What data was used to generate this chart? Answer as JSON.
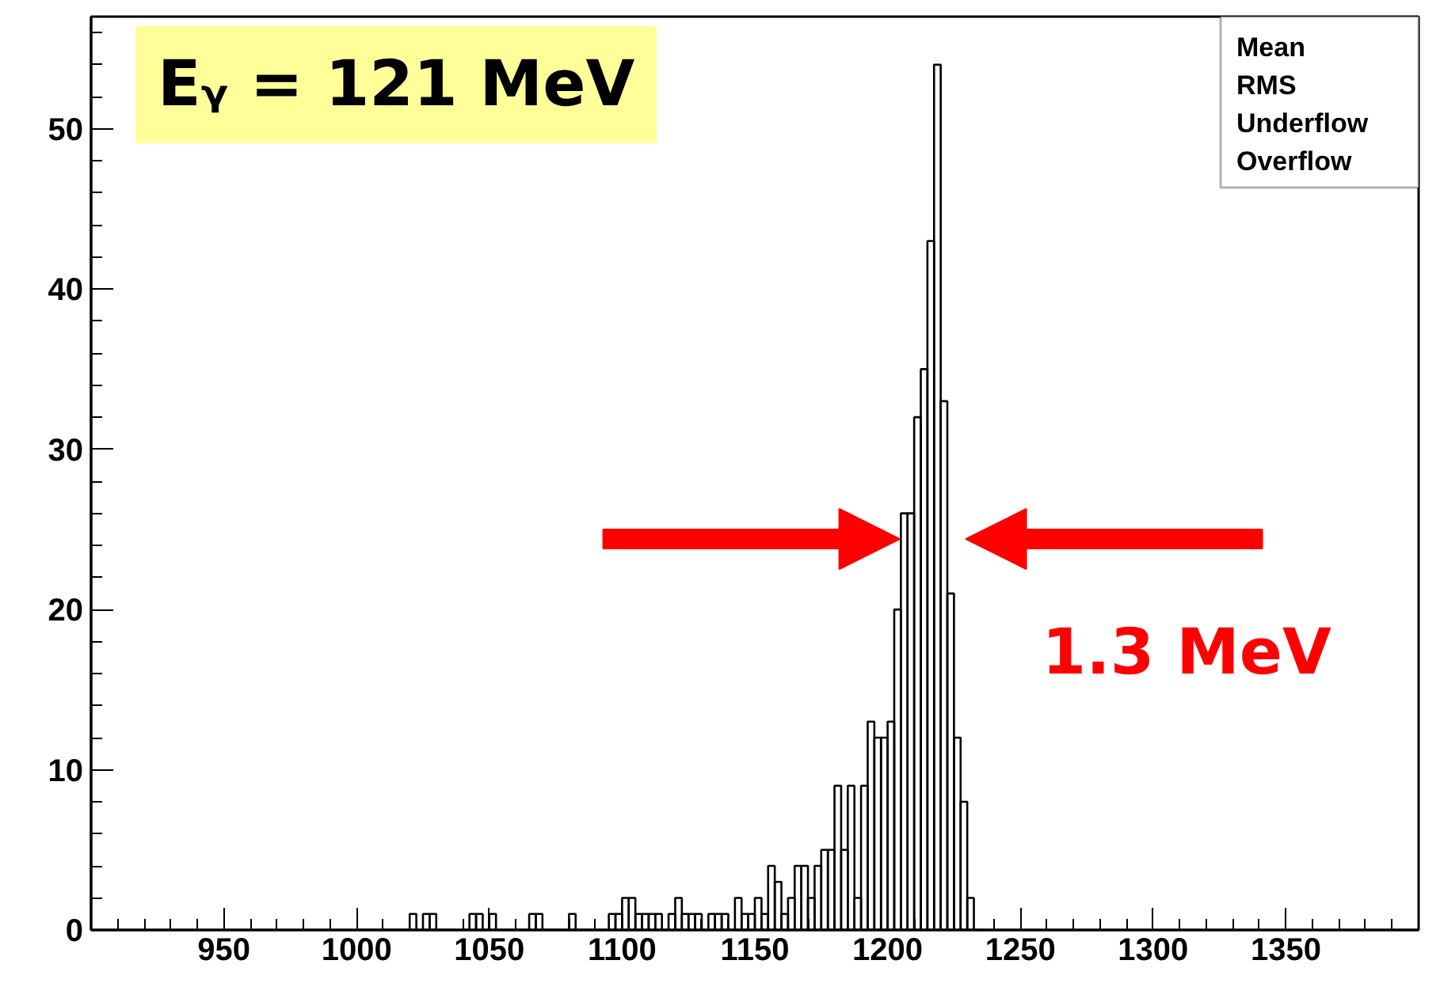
{
  "chart_data": {
    "type": "histogram",
    "bins": [
      1000,
      1002.5,
      1005,
      1007.5,
      1010,
      1012.5,
      1015,
      1017.5,
      1020,
      1022.5,
      1025,
      1027.5,
      1030,
      1032.5,
      1035,
      1037.5,
      1040,
      1042.5,
      1045,
      1047.5,
      1050,
      1052.5,
      1055,
      1057.5,
      1060,
      1062.5,
      1065,
      1067.5,
      1070,
      1072.5,
      1075,
      1077.5,
      1080,
      1082.5,
      1085,
      1087.5,
      1090,
      1092.5,
      1095,
      1097.5,
      1100,
      1102.5,
      1105,
      1107.5,
      1110,
      1112.5,
      1115,
      1117.5,
      1120,
      1122.5,
      1125,
      1127.5,
      1130,
      1132.5,
      1135,
      1137.5,
      1140,
      1142.5,
      1145,
      1147.5,
      1150,
      1152.5,
      1155,
      1157.5,
      1160,
      1162.5,
      1165,
      1167.5,
      1170,
      1172.5,
      1175,
      1177.5,
      1180,
      1182.5,
      1185,
      1187.5,
      1190,
      1192.5,
      1195,
      1197.5,
      1200,
      1202.5,
      1205,
      1207.5,
      1210,
      1212.5,
      1215,
      1217.5,
      1220,
      1222.5,
      1225,
      1227.5,
      1230,
      1232.5,
      1235
    ],
    "values": [
      0,
      0,
      0,
      0,
      0,
      0,
      0,
      0,
      1,
      0,
      1,
      1,
      0,
      0,
      0,
      0,
      0,
      1,
      1,
      0,
      1,
      0,
      0,
      0,
      0,
      0,
      1,
      1,
      0,
      0,
      0,
      0,
      1,
      0,
      0,
      0,
      0,
      0,
      1,
      1,
      2,
      2,
      1,
      1,
      1,
      1,
      0,
      1,
      2,
      1,
      1,
      1,
      0,
      1,
      1,
      1,
      0,
      2,
      1,
      1,
      2,
      1,
      4,
      3,
      1,
      2,
      4,
      4,
      2,
      4,
      5,
      5,
      9,
      5,
      9,
      2,
      9,
      13,
      12,
      12,
      13,
      20,
      26,
      26,
      32,
      35,
      43,
      54,
      33,
      21,
      12,
      8,
      2,
      0
    ],
    "color": "#000000",
    "xlim": [
      900,
      1400
    ],
    "ylim": [
      0,
      57
    ],
    "xticks": [
      950,
      1000,
      1050,
      1100,
      1150,
      1200,
      1250,
      1300,
      1350
    ],
    "yticks": [
      0,
      10,
      20,
      30,
      40,
      50
    ],
    "grid": false,
    "annotations": [
      "Eᵧ = 121 MeV",
      "Mean",
      "RMS",
      "Underflow",
      "Overflow",
      {
        "text": "1.3 MeV",
        "x": 1217,
        "y": 24.4
      }
    ]
  }
}
